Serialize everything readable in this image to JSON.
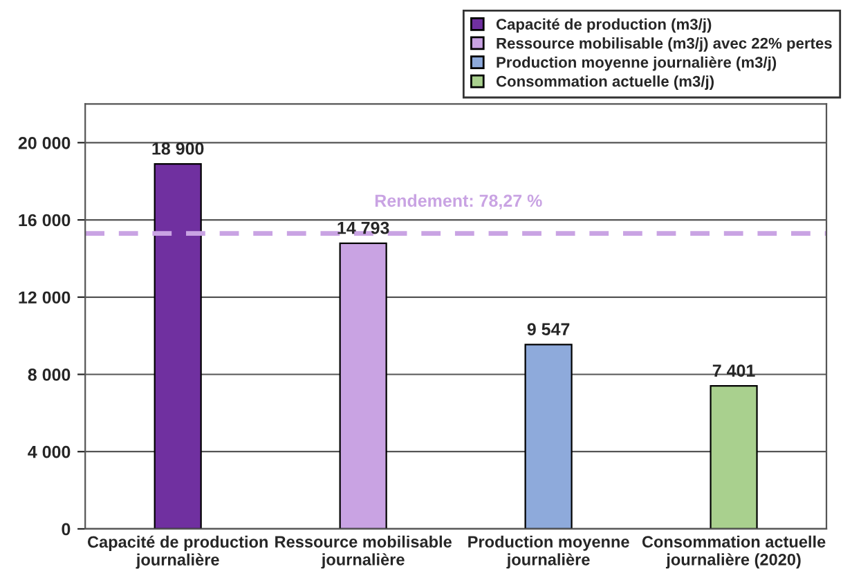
{
  "chart_data": {
    "type": "bar",
    "stacked": true,
    "categories": [
      "Capacité de production\njournalière",
      "Ressource mobilisable\njournalière",
      "Production moyenne\njournalière",
      "Consommation actuelle\njournalière (2020)"
    ],
    "series": [
      {
        "name": "Capacité de production (m3/j)",
        "color": "#7030a0",
        "values": [
          18900,
          null,
          null,
          null
        ],
        "value_labels": [
          "18 900",
          null,
          null,
          null
        ]
      },
      {
        "name": "Ressource mobilisable (m3/j) avec 22% pertes",
        "color": "#c9a3e3",
        "values": [
          null,
          14793,
          null,
          null
        ],
        "value_labels": [
          null,
          "14 793",
          null,
          null
        ]
      },
      {
        "name": "Production moyenne journalière (m3/j)",
        "color": "#8eaadb",
        "values": [
          null,
          null,
          9547,
          null
        ],
        "value_labels": [
          null,
          null,
          "9 547",
          null
        ]
      },
      {
        "name": "Consommation actuelle (m3/j)",
        "color": "#a9d08e",
        "values": [
          null,
          null,
          null,
          7401
        ],
        "value_labels": [
          null,
          null,
          null,
          "7 401"
        ]
      }
    ],
    "ylim": [
      0,
      22000
    ],
    "yticks": [
      {
        "value": 0,
        "label": "0"
      },
      {
        "value": 4000,
        "label": "4 000"
      },
      {
        "value": 8000,
        "label": "8 000"
      },
      {
        "value": 12000,
        "label": "12 000"
      },
      {
        "value": 16000,
        "label": "16 000"
      },
      {
        "value": 20000,
        "label": "20 000"
      }
    ],
    "ref_lines": [
      {
        "axis": "y",
        "value": 15300,
        "color": "#c9a3e3",
        "line_style": "dashed"
      }
    ],
    "annotations": [
      "Rendement: 78,27 %"
    ],
    "grid": "y",
    "legend": "top right"
  }
}
